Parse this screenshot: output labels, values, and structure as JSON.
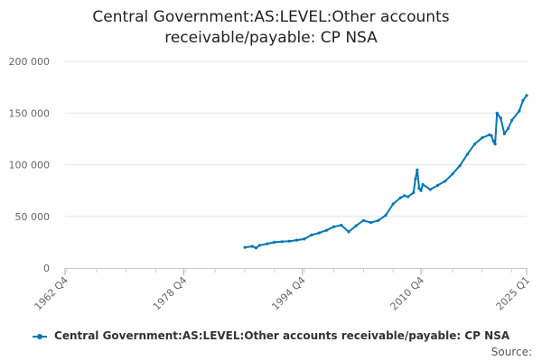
{
  "chart_data": {
    "type": "line",
    "title_lines": [
      "Central Government:AS:LEVEL:Other accounts",
      "receivable/payable: CP NSA"
    ],
    "series": [
      {
        "name": "Central Government:AS:LEVEL:Other accounts receivable/payable: CP NSA",
        "color": "#0077b3",
        "x": [
          1987.0,
          1988.0,
          1988.5,
          1989.0,
          1990.0,
          1991.0,
          1992.0,
          1993.0,
          1994.0,
          1995.0,
          1996.0,
          1997.0,
          1998.0,
          1999.0,
          2000.0,
          2001.0,
          2002.0,
          2003.0,
          2004.0,
          2005.0,
          2006.0,
          2007.0,
          2008.0,
          2008.5,
          2009.0,
          2009.75,
          2010.0,
          2010.25,
          2010.5,
          2010.75,
          2011.0,
          2012.0,
          2013.0,
          2014.0,
          2015.0,
          2016.0,
          2017.0,
          2018.0,
          2019.0,
          2020.0,
          2020.25,
          2020.5,
          2020.75,
          2021.0,
          2021.5,
          2022.0,
          2022.5,
          2023.0,
          2024.0,
          2024.5,
          2025.0
        ],
        "y": [
          20000,
          21000,
          19500,
          22000,
          23500,
          25000,
          25500,
          26000,
          27000,
          28000,
          32000,
          34000,
          36500,
          40000,
          41500,
          35000,
          41000,
          46000,
          44000,
          46000,
          51000,
          62000,
          68000,
          70000,
          69000,
          73000,
          86000,
          95000,
          77000,
          75000,
          81000,
          76000,
          80000,
          84000,
          91000,
          99000,
          110000,
          120000,
          126000,
          129000,
          128000,
          123000,
          120000,
          150000,
          145000,
          130000,
          135000,
          143000,
          152000,
          162000,
          167000
        ]
      }
    ],
    "x_range": [
      1962.75,
      2025.0
    ],
    "x_ticks": [
      {
        "value": 1962.75,
        "label": "1962 Q4"
      },
      {
        "value": 1978.75,
        "label": "1978 Q4"
      },
      {
        "value": 1994.75,
        "label": "1994 Q4"
      },
      {
        "value": 2010.75,
        "label": "2010 Q4"
      },
      {
        "value": 2025.0,
        "label": "2025 Q1"
      }
    ],
    "y_range": [
      0,
      200000
    ],
    "y_ticks": [
      {
        "value": 0,
        "label": "0"
      },
      {
        "value": 50000,
        "label": "50 000"
      },
      {
        "value": 100000,
        "label": "100 000"
      },
      {
        "value": 150000,
        "label": "150 000"
      },
      {
        "value": 200000,
        "label": "200 000"
      }
    ],
    "grid": "horizontal",
    "legend_position": "bottom-center",
    "source_label": "Source:"
  }
}
